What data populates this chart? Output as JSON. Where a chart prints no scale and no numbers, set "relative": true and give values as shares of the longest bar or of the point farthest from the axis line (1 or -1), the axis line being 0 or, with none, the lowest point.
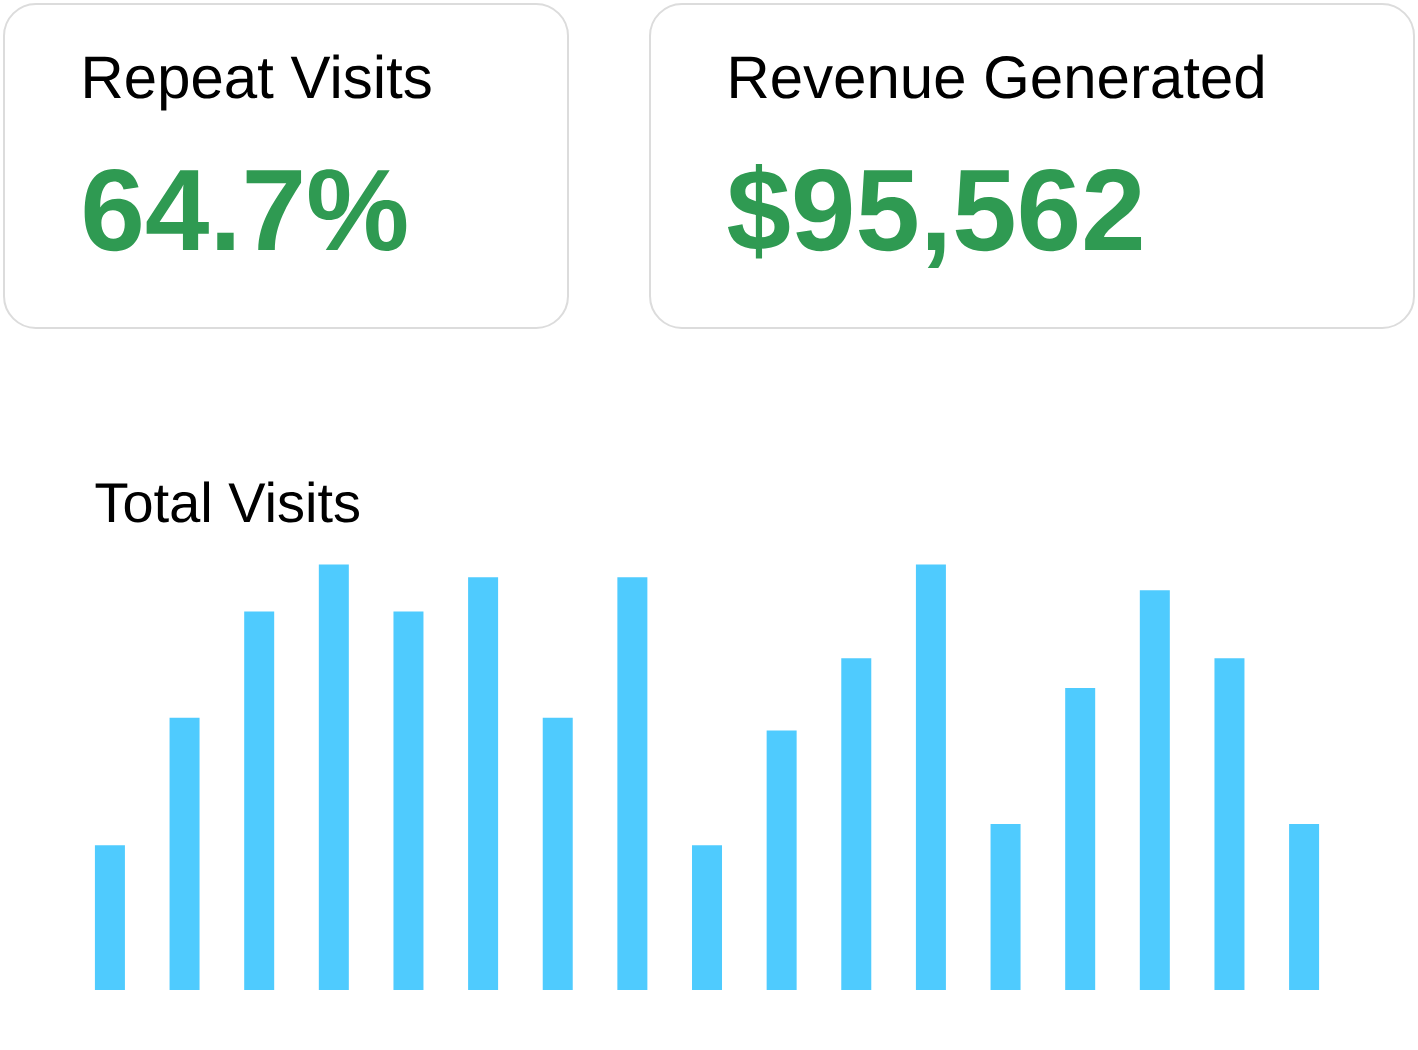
{
  "chart_data": [
    {
      "type": "other",
      "title": "Repeat Visits",
      "annotations": [
        "64.7%"
      ]
    },
    {
      "type": "other",
      "title": "Revenue Generated",
      "annotations": [
        "$95,562"
      ]
    },
    {
      "type": "bar",
      "title": "Total Visits",
      "relative": true,
      "color": "#4fcbfe",
      "categories": [
        null,
        null,
        null,
        null,
        null,
        null,
        null,
        null,
        null,
        null,
        null,
        null,
        null,
        null,
        null,
        null,
        null
      ],
      "values": [
        0.34,
        0.64,
        0.89,
        1,
        0.89,
        0.97,
        0.64,
        0.97,
        0.34,
        0.61,
        0.78,
        1,
        0.39,
        0.71,
        0.94,
        0.78,
        0.39
      ]
    }
  ]
}
